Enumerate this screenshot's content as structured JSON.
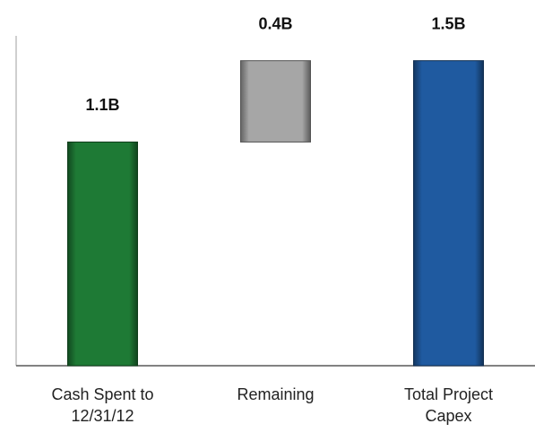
{
  "chart_data": {
    "type": "waterfall",
    "categories": [
      "Cash Spent to 12/31/12",
      "Remaining",
      "Total Project Capex"
    ],
    "values": [
      1.1,
      0.4,
      1.5
    ],
    "value_labels": [
      "1.1B",
      "0.4B",
      "1.5B"
    ],
    "totals": [
      false,
      false,
      true
    ],
    "colors": [
      "#1e7a35",
      "#a6a6a6",
      "#1f5aa0"
    ],
    "ylim": [
      0,
      1.6
    ]
  }
}
